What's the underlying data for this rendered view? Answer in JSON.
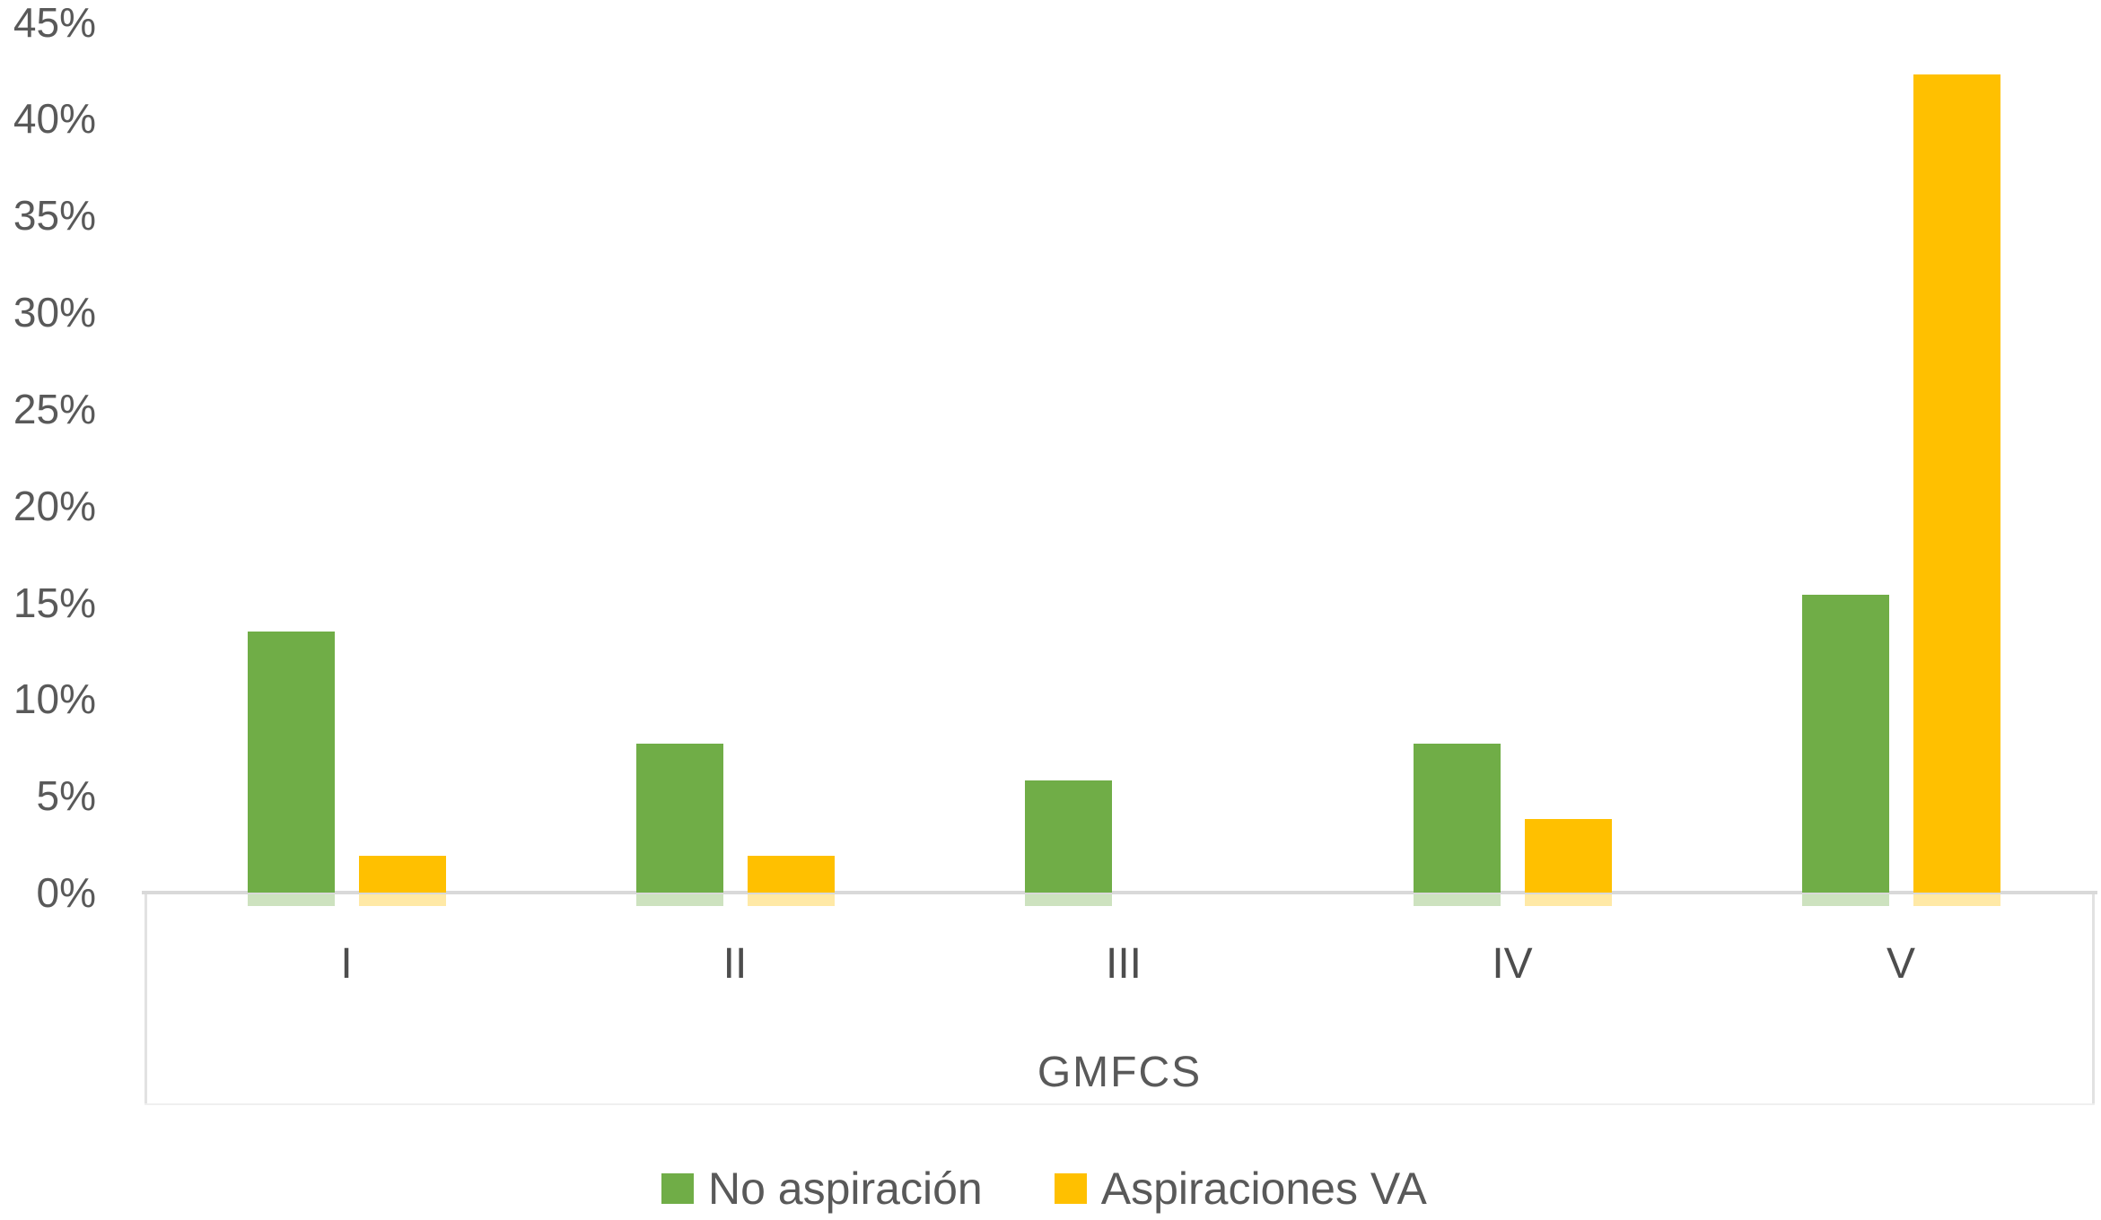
{
  "chart_data": {
    "type": "bar",
    "title": "",
    "categories": [
      "I",
      "II",
      "III",
      "IV",
      "V"
    ],
    "series": [
      {
        "name": "No aspiración",
        "color": "#70AD47",
        "values": [
          13.5,
          7.7,
          5.8,
          7.7,
          15.4
        ]
      },
      {
        "name": "Aspiraciones VA",
        "color": "#FFC000",
        "values": [
          1.9,
          1.9,
          0,
          3.8,
          42.3
        ]
      }
    ],
    "xlabel": "GMFCS",
    "ylabel": "",
    "ylim": [
      0,
      45
    ],
    "ytick_step": 5,
    "ytick_labels": [
      "0%",
      "5%",
      "10%",
      "15%",
      "20%",
      "25%",
      "30%",
      "35%",
      "40%",
      "45%"
    ],
    "grid": false,
    "legend_position": "bottom",
    "text_color": "#595959",
    "axis_line_color": "#D9D9D9"
  }
}
